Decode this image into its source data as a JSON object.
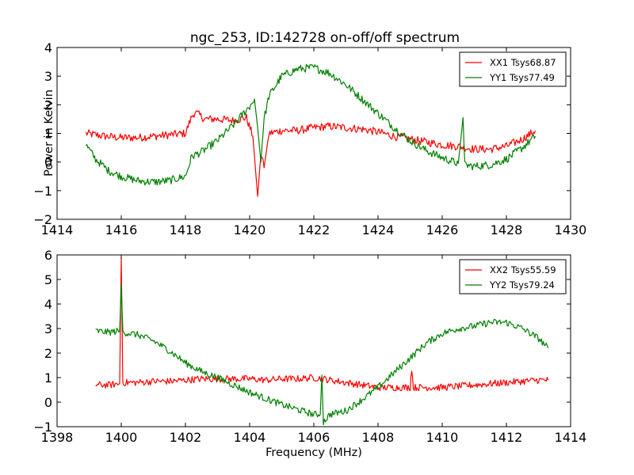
{
  "chart_data": [
    {
      "type": "line",
      "title": "ngc_253, ID:142728 on-off/off spectrum",
      "xlabel": "",
      "ylabel": "Power in Kelvin",
      "xlim": [
        1414,
        1430
      ],
      "ylim": [
        -2,
        4
      ],
      "xticks": [
        "1414",
        "1416",
        "1418",
        "1420",
        "1422",
        "1424",
        "1426",
        "1428",
        "1430"
      ],
      "yticks": [
        "−2",
        "−1",
        "0",
        "1",
        "2",
        "3",
        "4"
      ],
      "grid": false,
      "legend_position": "top-right",
      "series": [
        {
          "name": "XX1 Tsys68.87",
          "color": "#ff0000",
          "x": [
            1414.9,
            1415.5,
            1416.0,
            1416.5,
            1417.0,
            1417.5,
            1418.0,
            1418.2,
            1418.3,
            1418.6,
            1419.0,
            1419.5,
            1419.9,
            1420.1,
            1420.25,
            1420.35,
            1420.45,
            1420.6,
            1421.0,
            1421.5,
            1422.0,
            1422.5,
            1423.0,
            1423.5,
            1424.0,
            1424.5,
            1425.0,
            1425.5,
            1426.0,
            1426.5,
            1427.0,
            1427.5,
            1428.0,
            1428.5,
            1428.9
          ],
          "y": [
            1.0,
            0.9,
            0.85,
            0.85,
            0.9,
            0.95,
            1.0,
            1.6,
            1.75,
            1.5,
            1.5,
            1.45,
            1.55,
            0.9,
            -1.2,
            0.3,
            -0.2,
            1.0,
            1.1,
            1.1,
            1.2,
            1.25,
            1.2,
            1.15,
            1.05,
            0.9,
            0.8,
            0.7,
            0.6,
            0.55,
            0.45,
            0.45,
            0.55,
            0.8,
            1.1
          ]
        },
        {
          "name": "YY1 Tsys77.49",
          "color": "#008000",
          "x": [
            1414.9,
            1415.2,
            1415.6,
            1416.0,
            1416.5,
            1417.0,
            1417.5,
            1418.0,
            1418.2,
            1418.5,
            1419.0,
            1419.5,
            1420.0,
            1420.15,
            1420.25,
            1420.35,
            1420.45,
            1420.6,
            1421.0,
            1421.5,
            1422.0,
            1422.5,
            1423.0,
            1423.5,
            1424.0,
            1424.5,
            1425.0,
            1425.5,
            1426.0,
            1426.5,
            1426.65,
            1426.7,
            1427.0,
            1427.5,
            1428.0,
            1428.5,
            1428.9
          ],
          "y": [
            0.6,
            0.1,
            -0.3,
            -0.5,
            -0.65,
            -0.7,
            -0.65,
            -0.5,
            0.2,
            0.35,
            0.75,
            1.3,
            1.95,
            2.2,
            1.2,
            0.0,
            1.5,
            2.3,
            3.0,
            3.25,
            3.3,
            3.1,
            2.7,
            2.2,
            1.7,
            1.2,
            0.75,
            0.4,
            0.15,
            -0.05,
            1.55,
            -0.1,
            -0.15,
            -0.1,
            0.1,
            0.5,
            0.9
          ]
        }
      ]
    },
    {
      "type": "line",
      "title": "",
      "xlabel": "Frequency (MHz)",
      "ylabel": "",
      "xlim": [
        1398,
        1414
      ],
      "ylim": [
        -1,
        6
      ],
      "xticks": [
        "1398",
        "1400",
        "1402",
        "1404",
        "1406",
        "1408",
        "1410",
        "1412",
        "1414"
      ],
      "yticks": [
        "−1",
        "0",
        "1",
        "2",
        "3",
        "4",
        "5",
        "6"
      ],
      "grid": false,
      "legend_position": "top-right",
      "series": [
        {
          "name": "XX2 Tsys55.59",
          "color": "#ff0000",
          "x": [
            1399.2,
            1399.6,
            1399.95,
            1400.0,
            1400.05,
            1400.5,
            1401.0,
            1401.5,
            1402.0,
            1402.5,
            1403.0,
            1403.5,
            1404.0,
            1404.5,
            1405.0,
            1405.5,
            1406.0,
            1406.3,
            1406.5,
            1407.0,
            1407.5,
            1408.0,
            1408.5,
            1409.0,
            1409.05,
            1409.1,
            1409.5,
            1410.0,
            1410.5,
            1411.0,
            1411.5,
            1412.0,
            1412.5,
            1413.0,
            1413.3
          ],
          "y": [
            0.7,
            0.7,
            0.75,
            5.9,
            0.8,
            0.8,
            0.85,
            0.85,
            0.9,
            0.95,
            0.95,
            0.95,
            0.95,
            0.9,
            0.95,
            0.95,
            1.0,
            0.95,
            0.9,
            0.8,
            0.7,
            0.6,
            0.6,
            0.6,
            1.4,
            0.6,
            0.6,
            0.6,
            0.65,
            0.7,
            0.75,
            0.8,
            0.85,
            0.9,
            0.9
          ]
        },
        {
          "name": "YY2 Tsys79.24",
          "color": "#008000",
          "x": [
            1399.2,
            1399.6,
            1399.95,
            1400.0,
            1400.05,
            1400.5,
            1401.0,
            1401.5,
            1402.0,
            1402.5,
            1403.0,
            1403.5,
            1404.0,
            1404.5,
            1405.0,
            1405.5,
            1406.0,
            1406.2,
            1406.25,
            1406.3,
            1406.5,
            1407.0,
            1407.5,
            1408.0,
            1408.5,
            1409.0,
            1409.5,
            1410.0,
            1410.5,
            1411.0,
            1411.5,
            1412.0,
            1412.5,
            1413.0,
            1413.3
          ],
          "y": [
            2.9,
            2.85,
            2.9,
            4.8,
            2.85,
            2.75,
            2.5,
            2.1,
            1.6,
            1.25,
            1.0,
            0.7,
            0.4,
            0.15,
            -0.1,
            -0.3,
            -0.5,
            -0.5,
            1.1,
            -0.8,
            -0.5,
            -0.35,
            0.1,
            0.6,
            1.2,
            1.8,
            2.4,
            2.8,
            3.0,
            3.1,
            3.25,
            3.25,
            3.0,
            2.6,
            2.2
          ]
        }
      ]
    }
  ]
}
